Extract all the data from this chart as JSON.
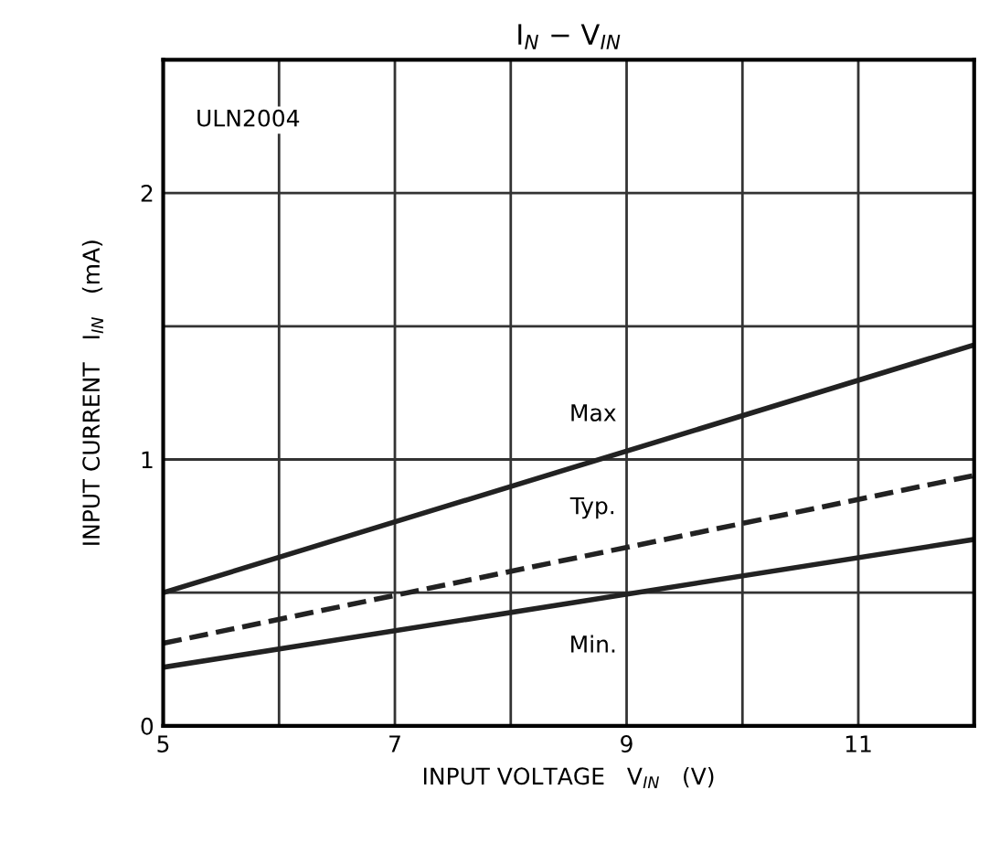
{
  "chart_data": {
    "type": "line",
    "title": "I$_{N}$ − V$_{IN}$",
    "xlabel": "INPUT VOLTAGE   V$_{IN}$   (V)",
    "ylabel": "INPUT CURRENT   I$_{IN}$   (mA)",
    "x": [
      5,
      12
    ],
    "series": [
      {
        "name": "Max",
        "color": "#222222",
        "values": [
          0.5,
          1.43
        ],
        "line_style": "solid"
      },
      {
        "name": "Typ.",
        "color": "#222222",
        "values": [
          0.31,
          0.94
        ],
        "line_style": "dashed"
      },
      {
        "name": "Min.",
        "color": "#222222",
        "values": [
          0.22,
          0.7
        ],
        "line_style": "solid"
      }
    ],
    "annotations": [
      "ULN2004"
    ],
    "xlim": [
      5,
      12
    ],
    "ylim": [
      0,
      2.5
    ],
    "xticks": [
      5,
      {
        "value": 6,
        "label": null
      },
      7,
      {
        "value": 8,
        "label": null
      },
      9,
      {
        "value": 10,
        "label": null
      },
      11,
      {
        "value": 12,
        "label": null
      }
    ],
    "yticks": [
      0,
      {
        "value": 0.5,
        "label": null
      },
      1,
      {
        "value": 1.5,
        "label": null
      },
      2,
      {
        "value": 2.5,
        "label": null
      }
    ],
    "grid": true,
    "legend": false,
    "marker": "none"
  }
}
